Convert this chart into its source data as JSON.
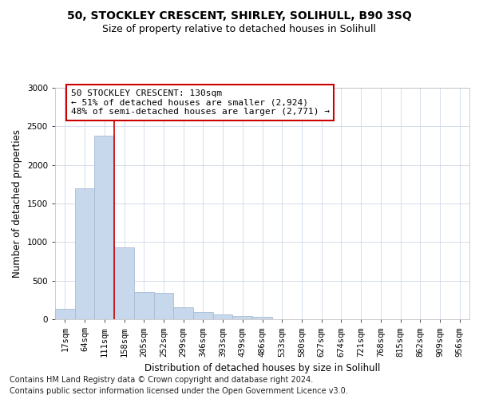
{
  "title1": "50, STOCKLEY CRESCENT, SHIRLEY, SOLIHULL, B90 3SQ",
  "title2": "Size of property relative to detached houses in Solihull",
  "xlabel": "Distribution of detached houses by size in Solihull",
  "ylabel": "Number of detached properties",
  "categories": [
    "17sqm",
    "64sqm",
    "111sqm",
    "158sqm",
    "205sqm",
    "252sqm",
    "299sqm",
    "346sqm",
    "393sqm",
    "439sqm",
    "486sqm",
    "533sqm",
    "580sqm",
    "627sqm",
    "674sqm",
    "721sqm",
    "768sqm",
    "815sqm",
    "862sqm",
    "909sqm",
    "956sqm"
  ],
  "values": [
    130,
    1700,
    2380,
    930,
    350,
    340,
    160,
    90,
    60,
    40,
    30,
    0,
    0,
    0,
    0,
    0,
    0,
    0,
    0,
    0,
    0
  ],
  "bar_color": "#c8d8ec",
  "bar_edge_color": "#a8bcd4",
  "vline_x_idx": 2,
  "vline_color": "#cc0000",
  "annotation_text": "50 STOCKLEY CRESCENT: 130sqm\n← 51% of detached houses are smaller (2,924)\n48% of semi-detached houses are larger (2,771) →",
  "annotation_box_color": "#ffffff",
  "annotation_box_edge": "#cc0000",
  "ylim": [
    0,
    3000
  ],
  "yticks": [
    0,
    500,
    1000,
    1500,
    2000,
    2500,
    3000
  ],
  "footer1": "Contains HM Land Registry data © Crown copyright and database right 2024.",
  "footer2": "Contains public sector information licensed under the Open Government Licence v3.0.",
  "bg_color": "#ffffff",
  "grid_color": "#cdd8e8",
  "title1_fontsize": 10,
  "title2_fontsize": 9,
  "axis_label_fontsize": 8.5,
  "tick_fontsize": 7.5,
  "annotation_fontsize": 8,
  "footer_fontsize": 7
}
